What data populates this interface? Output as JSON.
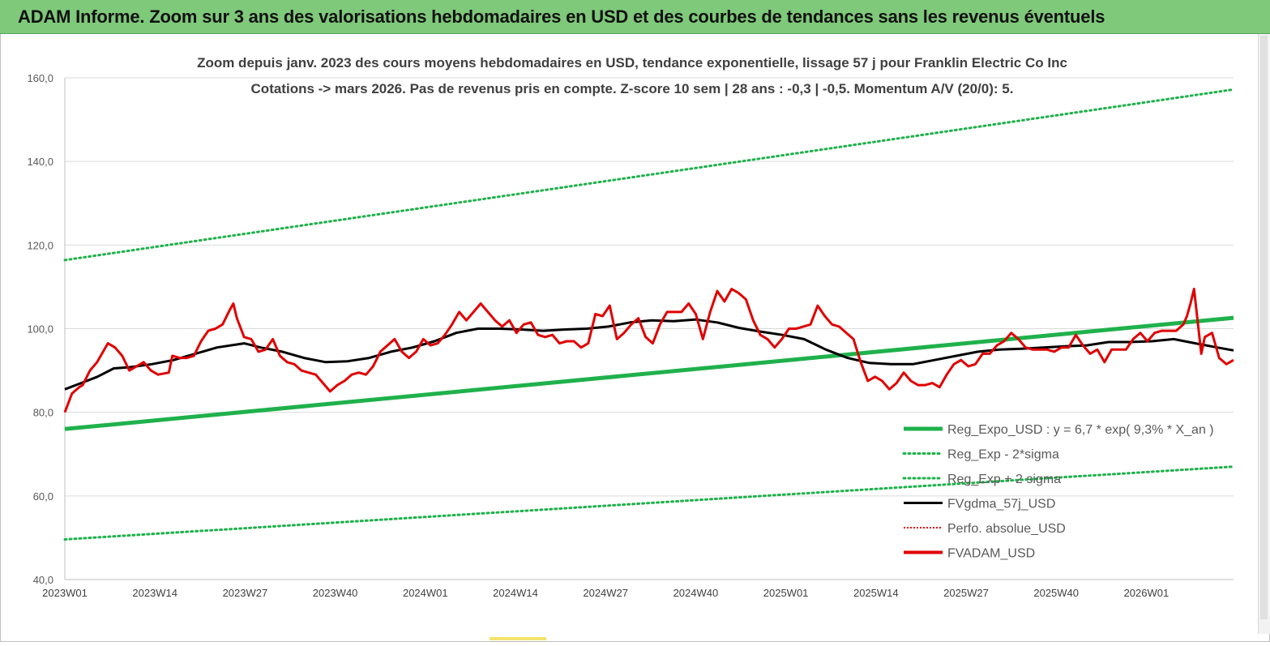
{
  "header": {
    "title": "ADAM Informe. Zoom sur 3 ans des valorisations hebdomadaires en USD et des courbes de tendances sans les revenus éventuels"
  },
  "colors": {
    "header_bg": "#7fc97a",
    "green": "#1fb14b",
    "black": "#000000",
    "red": "#e00000",
    "grid": "#d9d9d9"
  },
  "chart_data": {
    "type": "line",
    "title": [
      "Zoom depuis janv. 2023 des cours moyens hebdomadaires en USD, tendance exponentielle, lissage 57 j pour Franklin Electric Co Inc",
      "Cotations -> mars 2026. Pas de revenus pris en  compte. Z-score 10 sem  | 28 ans : -0,3 | -0,5. Momentum A/V (20/0): 5."
    ],
    "x_ticks": [
      "2023W01",
      "2023W14",
      "2023W27",
      "2023W40",
      "2024W01",
      "2024W14",
      "2024W27",
      "2024W40",
      "2025W01",
      "2025W14",
      "2025W27",
      "2025W40",
      "2026W01"
    ],
    "y_ticks": [
      "40,0",
      "60,0",
      "80,0",
      "100,0",
      "120,0",
      "140,0",
      "160,0"
    ],
    "ylim": [
      40,
      160
    ],
    "week_count": 170,
    "legend": [
      {
        "name": "Reg_Expo_USD : y = 6,7 * exp( 9,3% *  X_an )",
        "style": "green-thick"
      },
      {
        "name": "Reg_Exp - 2*sigma",
        "style": "green-dotted"
      },
      {
        "name": "Reg_Exp + 2 sigma",
        "style": "green-dotted"
      },
      {
        "name": "FVgdma_57j_USD",
        "style": "black"
      },
      {
        "name": "Perfo. absolue_USD",
        "style": "red-dotted"
      },
      {
        "name": "FVADAM_USD",
        "style": "red-thick"
      }
    ],
    "series": [
      {
        "name": "Reg_Expo_USD : y = 6,7 * exp( 9,3% *  X_an )",
        "points": [
          [
            0,
            76
          ],
          [
            170,
            102.6
          ]
        ]
      },
      {
        "name": "Reg_Exp - 2*sigma",
        "points": [
          [
            0,
            49.6
          ],
          [
            170,
            67
          ]
        ]
      },
      {
        "name": "Reg_Exp + 2 sigma",
        "points": [
          [
            0,
            116.4
          ],
          [
            170,
            157.2
          ]
        ]
      },
      {
        "name": "FVgdma_57j_USD",
        "points": [
          [
            0,
            85.5
          ],
          [
            3,
            87
          ],
          [
            6,
            88.5
          ],
          [
            9,
            90.5
          ],
          [
            12,
            90.8
          ],
          [
            16,
            91.5
          ],
          [
            20,
            92.5
          ],
          [
            24,
            94
          ],
          [
            28,
            95.5
          ],
          [
            33,
            96.5
          ],
          [
            36,
            95.5
          ],
          [
            40,
            94.5
          ],
          [
            44,
            93
          ],
          [
            48,
            92
          ],
          [
            52,
            92.2
          ],
          [
            56,
            93
          ],
          [
            60,
            94.5
          ],
          [
            64,
            95.5
          ],
          [
            68,
            97
          ],
          [
            72,
            99
          ],
          [
            76,
            100
          ],
          [
            80,
            100
          ],
          [
            84,
            99.8
          ],
          [
            88,
            99.5
          ],
          [
            92,
            99.8
          ],
          [
            96,
            100
          ],
          [
            100,
            100.5
          ],
          [
            104,
            101.5
          ],
          [
            108,
            102
          ],
          [
            112,
            101.8
          ],
          [
            116,
            102.2
          ],
          [
            120,
            101.5
          ],
          [
            124,
            100.2
          ],
          [
            128,
            99.3
          ],
          [
            132,
            98.5
          ],
          [
            136,
            97.5
          ],
          [
            140,
            95
          ],
          [
            144,
            93
          ],
          [
            148,
            91.8
          ],
          [
            152,
            91.5
          ],
          [
            156,
            91.5
          ],
          [
            160,
            92.5
          ],
          [
            164,
            93.5
          ],
          [
            168,
            94.5
          ],
          [
            172,
            95
          ],
          [
            176,
            95.2
          ],
          [
            180,
            95.5
          ],
          [
            184,
            95.8
          ],
          [
            188,
            96
          ],
          [
            192,
            96.8
          ],
          [
            196,
            96.8
          ],
          [
            200,
            97
          ],
          [
            204,
            97.5
          ],
          [
            208,
            96.5
          ],
          [
            212,
            95.5
          ],
          [
            215,
            94.8
          ]
        ]
      },
      {
        "name": "FVADAM_USD",
        "points": [
          [
            0,
            80
          ],
          [
            2,
            84.5
          ],
          [
            4,
            86
          ],
          [
            5,
            86.5
          ],
          [
            7,
            90
          ],
          [
            9,
            92
          ],
          [
            12,
            96.5
          ],
          [
            14,
            95.5
          ],
          [
            16,
            93.5
          ],
          [
            18,
            90
          ],
          [
            20,
            91
          ],
          [
            22,
            92
          ],
          [
            24,
            90
          ],
          [
            26,
            89
          ],
          [
            29,
            89.5
          ],
          [
            30,
            93.5
          ],
          [
            32,
            93
          ],
          [
            34,
            93
          ],
          [
            36,
            93.5
          ],
          [
            38,
            97
          ],
          [
            40,
            99.5
          ],
          [
            42,
            100
          ],
          [
            44,
            101
          ],
          [
            46,
            104.5
          ],
          [
            47,
            106
          ],
          [
            48,
            102.5
          ],
          [
            50,
            98
          ],
          [
            52,
            97.5
          ],
          [
            54,
            94.5
          ],
          [
            56,
            95
          ],
          [
            58,
            97.5
          ],
          [
            60,
            93.5
          ],
          [
            62,
            92
          ],
          [
            64,
            91.5
          ],
          [
            66,
            90
          ],
          [
            68,
            89.5
          ],
          [
            70,
            89
          ],
          [
            72,
            87
          ],
          [
            74,
            85
          ],
          [
            76,
            86.5
          ],
          [
            78,
            87.5
          ],
          [
            80,
            89
          ],
          [
            82,
            89.5
          ],
          [
            84,
            89
          ],
          [
            86,
            91
          ],
          [
            88,
            94.5
          ],
          [
            90,
            96
          ],
          [
            92,
            97.5
          ],
          [
            94,
            94.5
          ],
          [
            96,
            93
          ],
          [
            98,
            94.5
          ],
          [
            100,
            97.5
          ],
          [
            102,
            96
          ],
          [
            104,
            96.5
          ],
          [
            106,
            98.5
          ],
          [
            108,
            101
          ],
          [
            110,
            104
          ],
          [
            112,
            102
          ],
          [
            114,
            104
          ],
          [
            116,
            106
          ],
          [
            118,
            104
          ],
          [
            120,
            102
          ],
          [
            122,
            100.5
          ],
          [
            124,
            102
          ],
          [
            126,
            99
          ],
          [
            128,
            101
          ],
          [
            130,
            101.5
          ],
          [
            132,
            98.5
          ],
          [
            134,
            98
          ],
          [
            136,
            98.5
          ],
          [
            138,
            96.5
          ],
          [
            140,
            97
          ],
          [
            142,
            97
          ],
          [
            144,
            95.5
          ],
          [
            146,
            96.5
          ],
          [
            148,
            103.5
          ],
          [
            150,
            103
          ],
          [
            152,
            105.5
          ],
          [
            154,
            97.5
          ],
          [
            156,
            99
          ],
          [
            158,
            101
          ],
          [
            160,
            102.5
          ],
          [
            162,
            98
          ],
          [
            164,
            96.5
          ],
          [
            166,
            101
          ],
          [
            168,
            104
          ],
          [
            170,
            104
          ],
          [
            172,
            104
          ],
          [
            174,
            106
          ],
          [
            176,
            103.5
          ],
          [
            178,
            97.5
          ],
          [
            180,
            104
          ],
          [
            182,
            109
          ],
          [
            184,
            106.5
          ],
          [
            186,
            109.5
          ],
          [
            188,
            108.5
          ],
          [
            190,
            107
          ],
          [
            192,
            102
          ],
          [
            194,
            98.5
          ],
          [
            196,
            97.5
          ],
          [
            198,
            95.5
          ],
          [
            200,
            97.5
          ],
          [
            202,
            100
          ],
          [
            204,
            100
          ],
          [
            206,
            100.5
          ],
          [
            208,
            101
          ],
          [
            210,
            105.5
          ],
          [
            212,
            103
          ],
          [
            214,
            101
          ],
          [
            216,
            100.5
          ],
          [
            218,
            99
          ],
          [
            220,
            97.5
          ],
          [
            222,
            92
          ],
          [
            224,
            87.5
          ],
          [
            226,
            88.5
          ],
          [
            228,
            87.5
          ],
          [
            230,
            85.5
          ],
          [
            232,
            87
          ],
          [
            234,
            89.5
          ],
          [
            236,
            87.5
          ],
          [
            238,
            86.5
          ],
          [
            240,
            86.5
          ],
          [
            242,
            87
          ],
          [
            244,
            86
          ],
          [
            246,
            89
          ],
          [
            248,
            91.5
          ],
          [
            250,
            92.5
          ],
          [
            252,
            91
          ],
          [
            254,
            91.5
          ],
          [
            256,
            94
          ],
          [
            258,
            94
          ],
          [
            260,
            96
          ],
          [
            262,
            97
          ],
          [
            264,
            99
          ],
          [
            266,
            97.5
          ],
          [
            268,
            95.5
          ],
          [
            270,
            95
          ],
          [
            272,
            95
          ],
          [
            274,
            95
          ],
          [
            276,
            94.5
          ],
          [
            278,
            95.5
          ],
          [
            280,
            95.5
          ],
          [
            282,
            98.5
          ],
          [
            284,
            96
          ],
          [
            286,
            94
          ],
          [
            288,
            95
          ],
          [
            290,
            92
          ],
          [
            292,
            95
          ],
          [
            294,
            95
          ],
          [
            296,
            95
          ],
          [
            298,
            97.5
          ],
          [
            300,
            99
          ],
          [
            302,
            97
          ],
          [
            304,
            99
          ],
          [
            306,
            99.5
          ],
          [
            308,
            99.5
          ],
          [
            310,
            99.5
          ],
          [
            312,
            101
          ],
          [
            313,
            103
          ],
          [
            314,
            106
          ],
          [
            315,
            109.5
          ],
          [
            317,
            94
          ],
          [
            318,
            98
          ],
          [
            320,
            99
          ],
          [
            322,
            93
          ],
          [
            324,
            91.5
          ],
          [
            326,
            92.5
          ]
        ]
      }
    ]
  }
}
